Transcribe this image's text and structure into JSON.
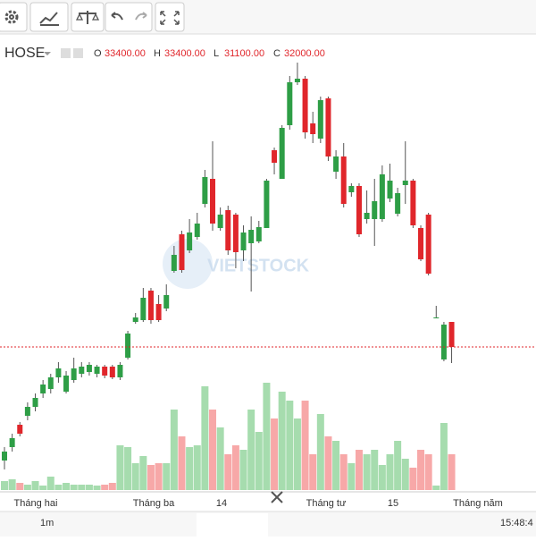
{
  "header": {
    "symbol": "HOSE",
    "ohlc": [
      {
        "key": "O",
        "text": "33400.00"
      },
      {
        "key": "H",
        "text": "33400.00"
      },
      {
        "key": "L",
        "text": "31100.00"
      },
      {
        "key": "C",
        "text": "32000.00"
      }
    ]
  },
  "chart_data": {
    "type": "candlestick",
    "watermark": "VIETSTOCK",
    "up_color": "#2e9e46",
    "down_color": "#e0262b",
    "volume_up_color": "#a6dcae",
    "volume_down_color": "#f7a8a8",
    "ylim": [
      24000,
      49300
    ],
    "vlim": [
      0,
      130
    ],
    "price_line": 32000,
    "x_labels": [
      "Tháng hai",
      "Tháng ba",
      "14",
      "Tháng tư",
      "15",
      "Tháng năm"
    ],
    "open": [
      25650,
      26400,
      27650,
      28150,
      28650,
      29400,
      29650,
      30300,
      29500,
      30150,
      30500,
      30600,
      30500,
      30900,
      30900,
      30300,
      31400,
      33400,
      33500,
      35150,
      34400,
      34150,
      36250,
      38300,
      37400,
      38150,
      40000,
      41400,
      38650,
      39650,
      39400,
      37400,
      37800,
      37900,
      38650,
      43000,
      41400,
      44400,
      46800,
      47000,
      44500,
      43650,
      45900,
      41800,
      42650,
      40650,
      41000,
      39150,
      39150,
      39150,
      40300,
      39450,
      41050,
      41300,
      38650,
      39400,
      33650,
      31300,
      33400
    ],
    "high": [
      26400,
      27150,
      27800,
      28900,
      29400,
      30150,
      30500,
      31150,
      30650,
      31400,
      31150,
      31150,
      31000,
      31000,
      31000,
      31150,
      32900,
      33900,
      35300,
      35300,
      34900,
      35500,
      37650,
      38500,
      39150,
      39500,
      41900,
      43500,
      39800,
      39900,
      39500,
      38800,
      39300,
      39050,
      41400,
      43150,
      44400,
      47150,
      47900,
      47150,
      45150,
      46000,
      46000,
      43000,
      43400,
      41150,
      41150,
      40750,
      41400,
      42150,
      42250,
      40900,
      43500,
      41400,
      38800,
      39500,
      34300,
      33400,
      33400
    ],
    "low": [
      25150,
      26150,
      27000,
      27900,
      28400,
      29150,
      29400,
      30000,
      29400,
      30000,
      30300,
      30400,
      30300,
      30250,
      30200,
      30150,
      31300,
      33300,
      33400,
      33300,
      33400,
      34000,
      36150,
      36150,
      37250,
      38000,
      39800,
      38500,
      38500,
      37150,
      36400,
      36800,
      35100,
      37800,
      38650,
      41650,
      41400,
      44150,
      46650,
      43650,
      43400,
      43400,
      42400,
      41400,
      39800,
      40400,
      38150,
      38900,
      37650,
      39000,
      40100,
      39300,
      40000,
      38650,
      36800,
      36000,
      33600,
      31200,
      31100
    ],
    "close": [
      26150,
      26900,
      27150,
      28650,
      29150,
      29900,
      30300,
      30800,
      30400,
      30800,
      30900,
      31000,
      30900,
      30400,
      30300,
      31000,
      32750,
      33650,
      34750,
      33500,
      33500,
      34900,
      37150,
      36300,
      38400,
      38900,
      41500,
      38900,
      39400,
      37400,
      37300,
      38400,
      38550,
      38700,
      41300,
      42300,
      44250,
      46800,
      47000,
      44000,
      43900,
      45800,
      42650,
      42650,
      40000,
      41000,
      38300,
      39500,
      40150,
      41650,
      41300,
      40600,
      41300,
      38800,
      36900,
      36100,
      33650,
      33250,
      32000
    ],
    "volume": [
      10,
      12,
      8,
      6,
      10,
      5,
      15,
      6,
      8,
      6,
      6,
      6,
      5,
      6,
      8,
      50,
      48,
      30,
      38,
      28,
      30,
      30,
      90,
      60,
      48,
      50,
      116,
      90,
      70,
      40,
      50,
      45,
      90,
      65,
      120,
      80,
      110,
      100,
      80,
      100,
      40,
      85,
      60,
      55,
      40,
      30,
      45,
      40,
      45,
      28,
      40,
      55,
      35,
      25,
      45,
      40,
      5,
      75,
      40
    ]
  },
  "footer": {
    "range": "1m",
    "time": "15:48:4"
  }
}
